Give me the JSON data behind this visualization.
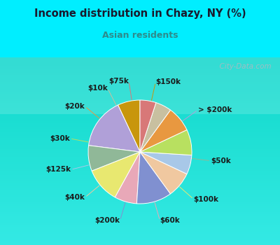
{
  "title": "Income distribution in Chazy, NY (%)",
  "subtitle": "Asian residents",
  "title_color": "#1a1a2e",
  "subtitle_color": "#2e8b8b",
  "bg_color": "#00EEFF",
  "chart_bg_top": "#e8f5f0",
  "chart_bg_bottom": "#c8e8d8",
  "watermark": "City-Data.com",
  "labels": [
    "$150k",
    "> $200k",
    "$50k",
    "$100k",
    "$60k",
    "$200k",
    "$40k",
    "$125k",
    "$30k",
    "$20k",
    "$10k",
    "$75k"
  ],
  "values": [
    7,
    16,
    8,
    11,
    7,
    11,
    8,
    6,
    8,
    8,
    5,
    5
  ],
  "colors": [
    "#c8960c",
    "#b0a0d8",
    "#90b898",
    "#e8e870",
    "#e8a8b8",
    "#8090d0",
    "#f0c8a0",
    "#a8c8e8",
    "#b8e060",
    "#e89840",
    "#c8c0a0",
    "#d87878"
  ],
  "label_fontsize": 7.5,
  "startangle": 90
}
